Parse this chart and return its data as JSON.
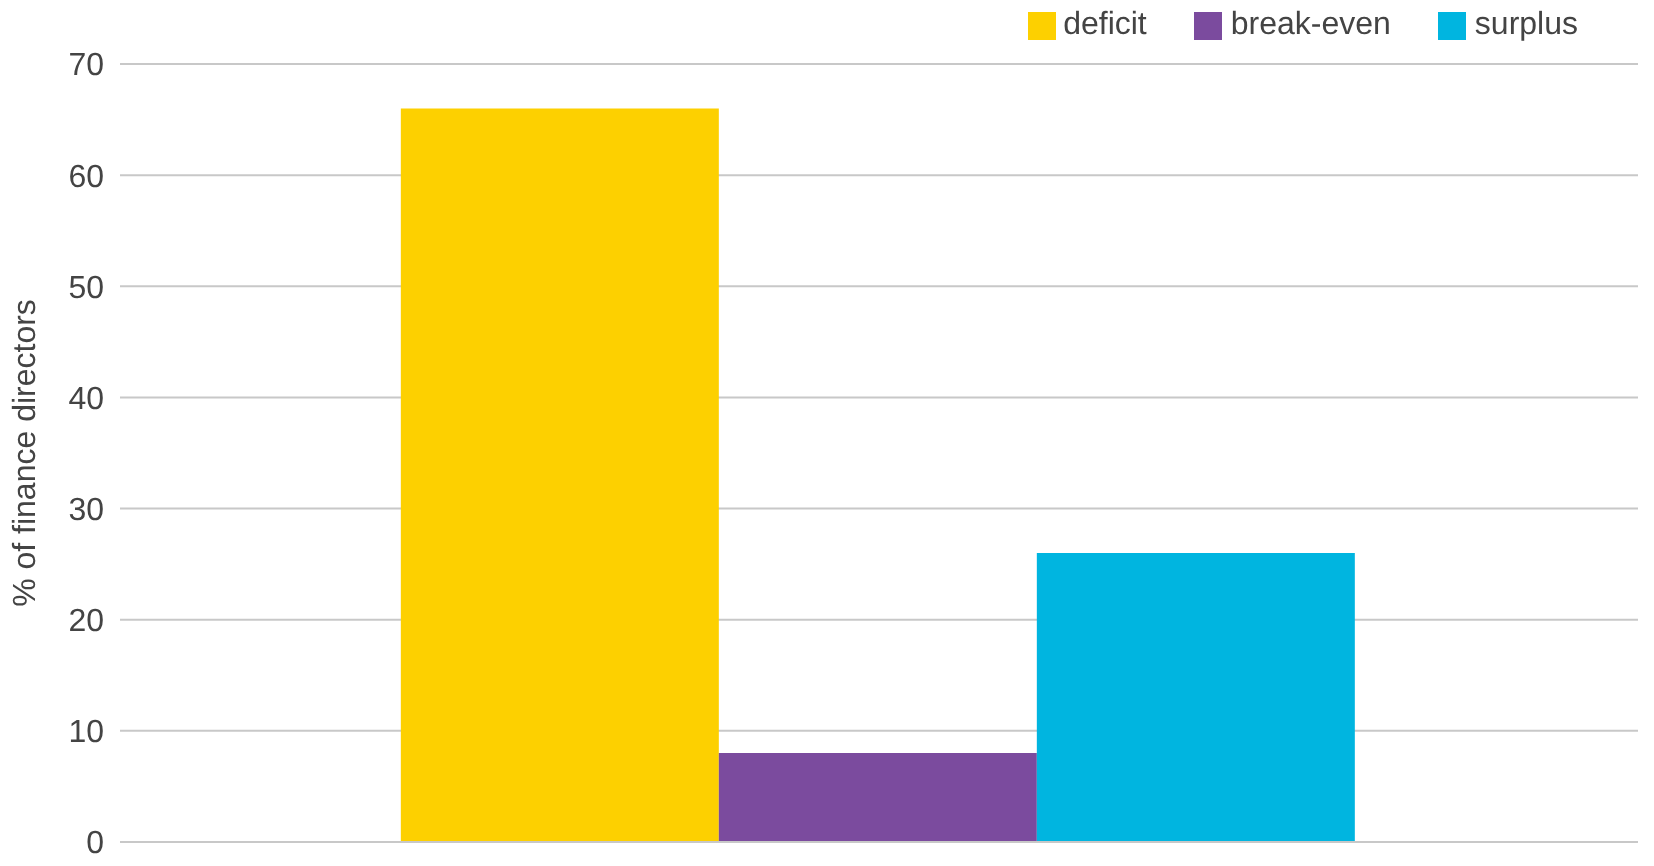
{
  "chart_data": {
    "type": "bar",
    "ylabel": "% of finance directors",
    "categories": [
      null
    ],
    "series": [
      {
        "name": "deficit",
        "color": "#fdd000",
        "values": [
          66
        ]
      },
      {
        "name": "break-even",
        "color": "#7b4b9e",
        "values": [
          8
        ]
      },
      {
        "name": "surplus",
        "color": "#00b5e0",
        "values": [
          26
        ]
      }
    ],
    "ylim": [
      0,
      70
    ],
    "yticks": [
      0,
      10,
      20,
      30,
      40,
      50,
      60,
      70
    ],
    "grid": "y",
    "legend": "top right"
  }
}
